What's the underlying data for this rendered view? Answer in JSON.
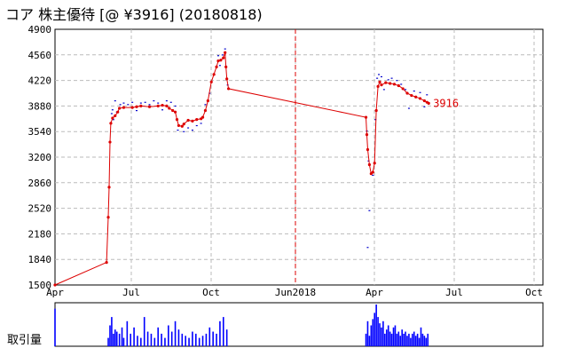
{
  "title": "コア 株主優待  [@ ¥3916] (20180818)",
  "chart_data": [
    {
      "type": "line",
      "name": "price",
      "ylim": [
        1500,
        4900
      ],
      "yticks": [
        1500,
        1840,
        2180,
        2520,
        2860,
        3200,
        3540,
        3880,
        4220,
        4560,
        4900
      ],
      "x_tick_labels": [
        "Apr",
        "Jul",
        "Oct",
        "Jun2018",
        "Apr",
        "Jul",
        "Oct"
      ],
      "grid": true,
      "line_color": "#dd0000",
      "marker_color": "#dd0000",
      "scatter_color": "#0000cc",
      "last_value_label": "3916",
      "year_divider": "Jun2018",
      "series": [
        {
          "values": [
            [
              0,
              1500
            ],
            [
              60,
              1800
            ],
            [
              62,
              2400
            ],
            [
              63,
              2800
            ],
            [
              64,
              3400
            ],
            [
              65,
              3650
            ],
            [
              67,
              3720
            ],
            [
              70,
              3750
            ],
            [
              73,
              3800
            ],
            [
              75,
              3850
            ],
            [
              80,
              3860
            ],
            [
              90,
              3860
            ],
            [
              95,
              3870
            ],
            [
              100,
              3880
            ],
            [
              110,
              3870
            ],
            [
              120,
              3880
            ],
            [
              125,
              3890
            ],
            [
              130,
              3880
            ],
            [
              133,
              3850
            ],
            [
              137,
              3820
            ],
            [
              140,
              3800
            ],
            [
              142,
              3700
            ],
            [
              144,
              3620
            ],
            [
              148,
              3610
            ],
            [
              150,
              3640
            ],
            [
              155,
              3690
            ],
            [
              160,
              3680
            ],
            [
              165,
              3700
            ],
            [
              170,
              3710
            ],
            [
              172,
              3730
            ],
            [
              175,
              3820
            ],
            [
              178,
              3950
            ],
            [
              182,
              4200
            ],
            [
              185,
              4300
            ],
            [
              188,
              4400
            ],
            [
              190,
              4480
            ],
            [
              193,
              4490
            ],
            [
              196,
              4520
            ],
            [
              198,
              4590
            ],
            [
              199,
              4400
            ],
            [
              200,
              4240
            ],
            [
              202,
              4110
            ],
            [
              362,
              3730
            ],
            [
              363,
              3500
            ],
            [
              364,
              3300
            ],
            [
              366,
              3100
            ],
            [
              368,
              2980
            ],
            [
              370,
              3000
            ],
            [
              372,
              3120
            ],
            [
              374,
              3820
            ],
            [
              376,
              4140
            ],
            [
              378,
              4200
            ],
            [
              380,
              4160
            ],
            [
              385,
              4190
            ],
            [
              390,
              4180
            ],
            [
              395,
              4170
            ],
            [
              400,
              4150
            ],
            [
              405,
              4110
            ],
            [
              410,
              4050
            ],
            [
              415,
              4020
            ],
            [
              420,
              4000
            ],
            [
              425,
              3980
            ],
            [
              430,
              3950
            ],
            [
              433,
              3930
            ],
            [
              435,
              3916
            ]
          ]
        }
      ],
      "scatter": [
        [
          66,
          3780
        ],
        [
          67,
          3830
        ],
        [
          68,
          3700
        ],
        [
          70,
          3950
        ],
        [
          72,
          3800
        ],
        [
          76,
          3900
        ],
        [
          80,
          3920
        ],
        [
          85,
          3900
        ],
        [
          90,
          3930
        ],
        [
          95,
          3820
        ],
        [
          100,
          3920
        ],
        [
          105,
          3930
        ],
        [
          110,
          3900
        ],
        [
          115,
          3950
        ],
        [
          120,
          3920
        ],
        [
          125,
          3830
        ],
        [
          130,
          3950
        ],
        [
          135,
          3930
        ],
        [
          140,
          3880
        ],
        [
          143,
          3560
        ],
        [
          150,
          3540
        ],
        [
          155,
          3590
        ],
        [
          160,
          3560
        ],
        [
          165,
          3620
        ],
        [
          170,
          3650
        ],
        [
          175,
          3900
        ],
        [
          180,
          4050
        ],
        [
          190,
          4550
        ],
        [
          192,
          4420
        ],
        [
          195,
          4560
        ],
        [
          198,
          4640
        ],
        [
          201,
          4160
        ],
        [
          363,
          3550
        ],
        [
          365,
          3150
        ],
        [
          370,
          2960
        ],
        [
          373,
          3700
        ],
        [
          375,
          4250
        ],
        [
          377,
          4300
        ],
        [
          380,
          4270
        ],
        [
          383,
          4100
        ],
        [
          388,
          4230
        ],
        [
          392,
          4250
        ],
        [
          398,
          4220
        ],
        [
          403,
          4170
        ],
        [
          408,
          4100
        ],
        [
          412,
          3850
        ],
        [
          418,
          4080
        ],
        [
          425,
          4060
        ],
        [
          430,
          3870
        ],
        [
          433,
          4030
        ],
        [
          364,
          2000
        ],
        [
          366,
          2490
        ]
      ]
    },
    {
      "type": "bar",
      "name": "volume",
      "ylabel": "取引量",
      "color": "#0000ff",
      "values": [
        [
          0,
          0.9
        ],
        [
          62,
          0.2
        ],
        [
          64,
          0.5
        ],
        [
          66,
          0.7
        ],
        [
          68,
          0.3
        ],
        [
          70,
          0.4
        ],
        [
          72,
          0.35
        ],
        [
          75,
          0.3
        ],
        [
          78,
          0.45
        ],
        [
          80,
          0.2
        ],
        [
          84,
          0.6
        ],
        [
          88,
          0.3
        ],
        [
          92,
          0.45
        ],
        [
          96,
          0.25
        ],
        [
          100,
          0.2
        ],
        [
          104,
          0.7
        ],
        [
          108,
          0.35
        ],
        [
          112,
          0.3
        ],
        [
          116,
          0.2
        ],
        [
          120,
          0.45
        ],
        [
          124,
          0.3
        ],
        [
          128,
          0.2
        ],
        [
          132,
          0.5
        ],
        [
          136,
          0.35
        ],
        [
          140,
          0.6
        ],
        [
          144,
          0.4
        ],
        [
          148,
          0.3
        ],
        [
          152,
          0.25
        ],
        [
          156,
          0.2
        ],
        [
          160,
          0.35
        ],
        [
          164,
          0.3
        ],
        [
          168,
          0.2
        ],
        [
          172,
          0.25
        ],
        [
          176,
          0.3
        ],
        [
          180,
          0.45
        ],
        [
          184,
          0.35
        ],
        [
          188,
          0.3
        ],
        [
          192,
          0.6
        ],
        [
          196,
          0.7
        ],
        [
          200,
          0.4
        ],
        [
          362,
          0.3
        ],
        [
          364,
          0.6
        ],
        [
          366,
          0.25
        ],
        [
          368,
          0.5
        ],
        [
          370,
          0.65
        ],
        [
          372,
          0.8
        ],
        [
          374,
          1.0
        ],
        [
          376,
          0.7
        ],
        [
          378,
          0.55
        ],
        [
          380,
          0.45
        ],
        [
          382,
          0.6
        ],
        [
          384,
          0.3
        ],
        [
          386,
          0.4
        ],
        [
          388,
          0.5
        ],
        [
          390,
          0.35
        ],
        [
          392,
          0.3
        ],
        [
          394,
          0.45
        ],
        [
          396,
          0.5
        ],
        [
          398,
          0.3
        ],
        [
          400,
          0.35
        ],
        [
          402,
          0.25
        ],
        [
          404,
          0.4
        ],
        [
          406,
          0.3
        ],
        [
          408,
          0.35
        ],
        [
          410,
          0.25
        ],
        [
          412,
          0.3
        ],
        [
          414,
          0.2
        ],
        [
          416,
          0.3
        ],
        [
          418,
          0.35
        ],
        [
          420,
          0.25
        ],
        [
          422,
          0.3
        ],
        [
          424,
          0.2
        ],
        [
          426,
          0.45
        ],
        [
          428,
          0.3
        ],
        [
          430,
          0.25
        ],
        [
          432,
          0.2
        ],
        [
          434,
          0.3
        ]
      ]
    }
  ]
}
